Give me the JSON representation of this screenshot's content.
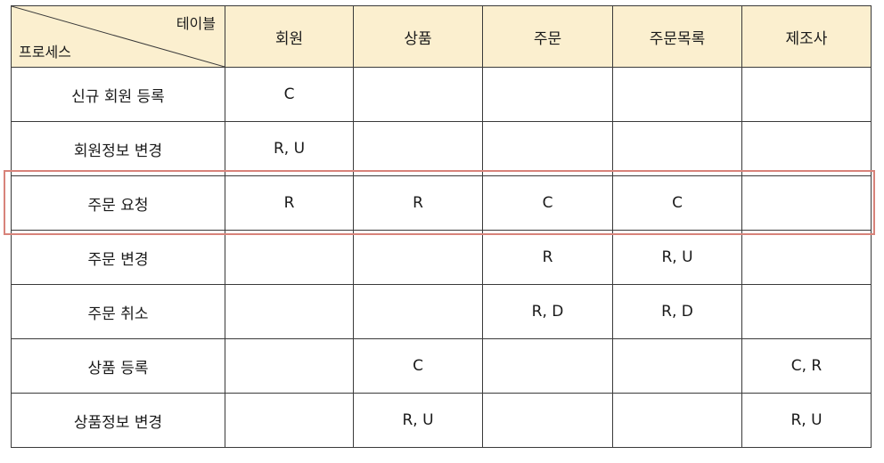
{
  "header": {
    "corner_top": "테이블",
    "corner_bottom": "프로세스",
    "columns": [
      "회원",
      "상품",
      "주문",
      "주문목록",
      "제조사"
    ]
  },
  "rows": [
    {
      "process": "신규 회원 등록",
      "cells": [
        "C",
        "",
        "",
        "",
        ""
      ]
    },
    {
      "process": "회원정보 변경",
      "cells": [
        "R, U",
        "",
        "",
        "",
        ""
      ]
    },
    {
      "process": "주문 요청",
      "cells": [
        "R",
        "R",
        "C",
        "C",
        ""
      ]
    },
    {
      "process": "주문 변경",
      "cells": [
        "",
        "",
        "R",
        "R, U",
        ""
      ]
    },
    {
      "process": "주문 취소",
      "cells": [
        "",
        "",
        "R, D",
        "R, D",
        ""
      ]
    },
    {
      "process": "상품 등록",
      "cells": [
        "",
        "C",
        "",
        "",
        "C, R"
      ]
    },
    {
      "process": "상품정보 변경",
      "cells": [
        "",
        "R, U",
        "",
        "",
        "R, U"
      ]
    }
  ],
  "highlighted_row": "주문 요청",
  "colors": {
    "header_bg": "#fbefcf",
    "border": "#3a3a3a",
    "highlight": "#d8837a"
  }
}
